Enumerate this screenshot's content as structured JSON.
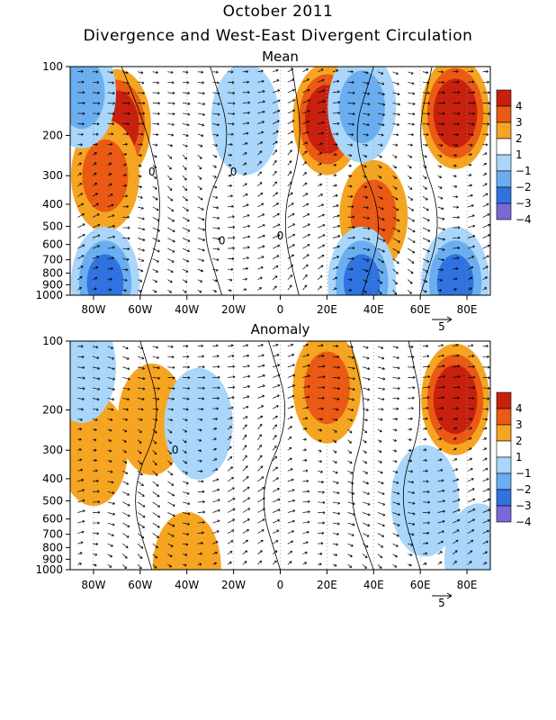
{
  "title": "October 2011",
  "subtitle": "Divergence and West-East Divergent Circulation",
  "colors": {
    "pos4": "#c8200e",
    "pos3": "#ea5a14",
    "pos2": "#f5a522",
    "pos1": "#ffffff",
    "neg1": "#a9d6fa",
    "neg2": "#6aaef0",
    "neg3": "#2f72e0",
    "neg4": "#7a68d6",
    "contour": "#000000",
    "grid": "#9a9a9a"
  },
  "chart_data": [
    {
      "type": "heatmap",
      "title": "Mean",
      "x_ticks": [
        "80W",
        "60W",
        "40W",
        "20W",
        "0",
        "20E",
        "40E",
        "60E",
        "80E"
      ],
      "x_values": [
        -80,
        -60,
        -40,
        -20,
        0,
        20,
        40,
        60,
        80
      ],
      "xlim": [
        -90,
        90
      ],
      "y_ticks": [
        "100",
        "200",
        "300",
        "400",
        "500",
        "600",
        "700",
        "800",
        "900",
        "1000"
      ],
      "y_values": [
        100,
        200,
        300,
        400,
        500,
        600,
        700,
        800,
        900,
        1000
      ],
      "ylim": [
        1000,
        100
      ],
      "y_scale": "log",
      "contour_labels": [
        "0",
        "0",
        "0",
        "0"
      ],
      "vector_scale_label": "5",
      "colorbar": {
        "levels": [
          "4",
          "3",
          "2",
          "1",
          "−1",
          "−2",
          "−3",
          "−4"
        ]
      },
      "fields": [
        {
          "sign": "pos",
          "x": -70,
          "p": 180,
          "amp": 3.6
        },
        {
          "sign": "pos",
          "x": -75,
          "p": 300,
          "amp": 1.8
        },
        {
          "sign": "pos",
          "x": 20,
          "p": 170,
          "amp": 4.2
        },
        {
          "sign": "pos",
          "x": 75,
          "p": 160,
          "amp": 3.8
        },
        {
          "sign": "pos",
          "x": 40,
          "p": 450,
          "amp": 1.6
        },
        {
          "sign": "neg",
          "x": 35,
          "p": 150,
          "amp": 1.5
        },
        {
          "sign": "neg",
          "x": -15,
          "p": 170,
          "amp": 1.2
        },
        {
          "sign": "neg",
          "x": -75,
          "p": 880,
          "amp": 3.0
        },
        {
          "sign": "neg",
          "x": 35,
          "p": 880,
          "amp": 3.0
        },
        {
          "sign": "neg",
          "x": 75,
          "p": 880,
          "amp": 2.5
        },
        {
          "sign": "neg",
          "x": -85,
          "p": 130,
          "amp": 2.0
        }
      ]
    },
    {
      "type": "heatmap",
      "title": "Anomaly",
      "x_ticks": [
        "80W",
        "60W",
        "40W",
        "20W",
        "0",
        "20E",
        "40E",
        "60E",
        "80E"
      ],
      "x_values": [
        -80,
        -60,
        -40,
        -20,
        0,
        20,
        40,
        60,
        80
      ],
      "xlim": [
        -90,
        90
      ],
      "y_ticks": [
        "100",
        "200",
        "300",
        "400",
        "500",
        "600",
        "700",
        "800",
        "900",
        "1000"
      ],
      "y_values": [
        100,
        200,
        300,
        400,
        500,
        600,
        700,
        800,
        900,
        1000
      ],
      "ylim": [
        1000,
        100
      ],
      "y_scale": "log",
      "contour_labels": [
        "0"
      ],
      "vector_scale_label": "5",
      "colorbar": {
        "levels": [
          "4",
          "3",
          "2",
          "1",
          "−1",
          "−2",
          "−3",
          "−4"
        ]
      },
      "fields": [
        {
          "sign": "pos",
          "x": 75,
          "p": 180,
          "amp": 3.6
        },
        {
          "sign": "pos",
          "x": 20,
          "p": 160,
          "amp": 2.2
        },
        {
          "sign": "pos",
          "x": -55,
          "p": 220,
          "amp": 1.4
        },
        {
          "sign": "pos",
          "x": -80,
          "p": 300,
          "amp": 1.2
        },
        {
          "sign": "pos",
          "x": -40,
          "p": 980,
          "amp": 1.2
        },
        {
          "sign": "neg",
          "x": -85,
          "p": 130,
          "amp": 1.2
        },
        {
          "sign": "neg",
          "x": -35,
          "p": 230,
          "amp": 1.3
        },
        {
          "sign": "neg",
          "x": 62,
          "p": 500,
          "amp": 1.2
        },
        {
          "sign": "neg",
          "x": 85,
          "p": 900,
          "amp": 1.4
        }
      ]
    }
  ]
}
